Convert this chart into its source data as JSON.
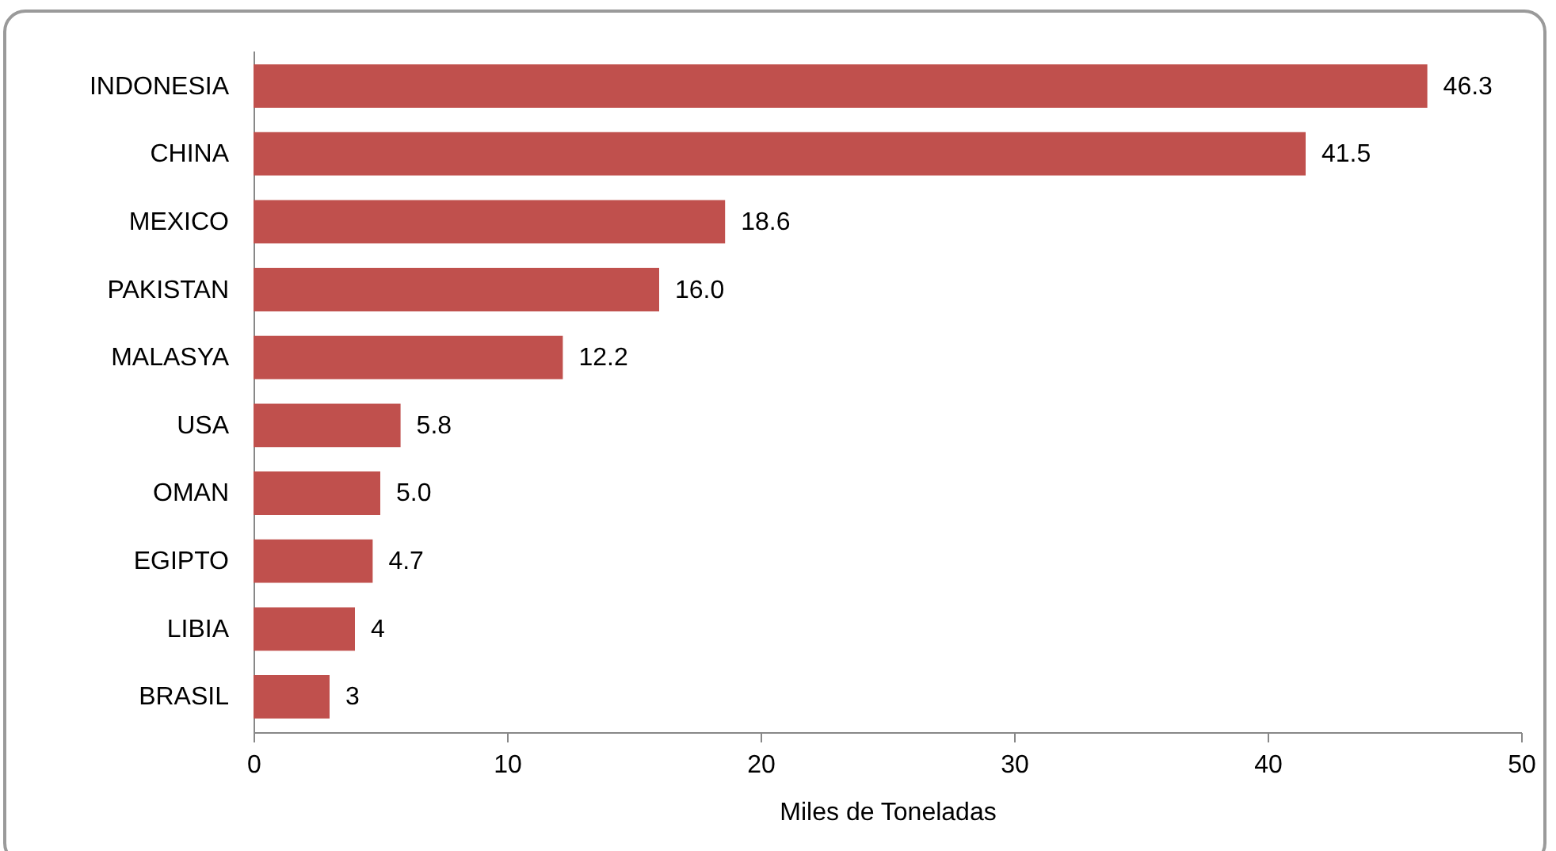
{
  "chart_data": {
    "type": "bar",
    "orientation": "horizontal",
    "xlabel": "Miles de Toneladas",
    "categories": [
      "INDONESIA",
      "CHINA",
      "MEXICO",
      "PAKISTAN",
      "MALASYA",
      "USA",
      "OMAN",
      "EGIPTO",
      "LIBIA",
      "BRASIL"
    ],
    "values": [
      46.3,
      41.5,
      18.6,
      16.0,
      12.2,
      5.8,
      5.0,
      4.7,
      4,
      3
    ],
    "value_labels": [
      "46.3",
      "41.5",
      "18.6",
      "16.0",
      "12.2",
      "5.8",
      "5.0",
      "4.7",
      "4",
      "3"
    ],
    "color": "#c0504d",
    "xlim": [
      0,
      50
    ],
    "xticks": [
      0,
      10,
      20,
      30,
      40,
      50
    ],
    "grid": false
  }
}
